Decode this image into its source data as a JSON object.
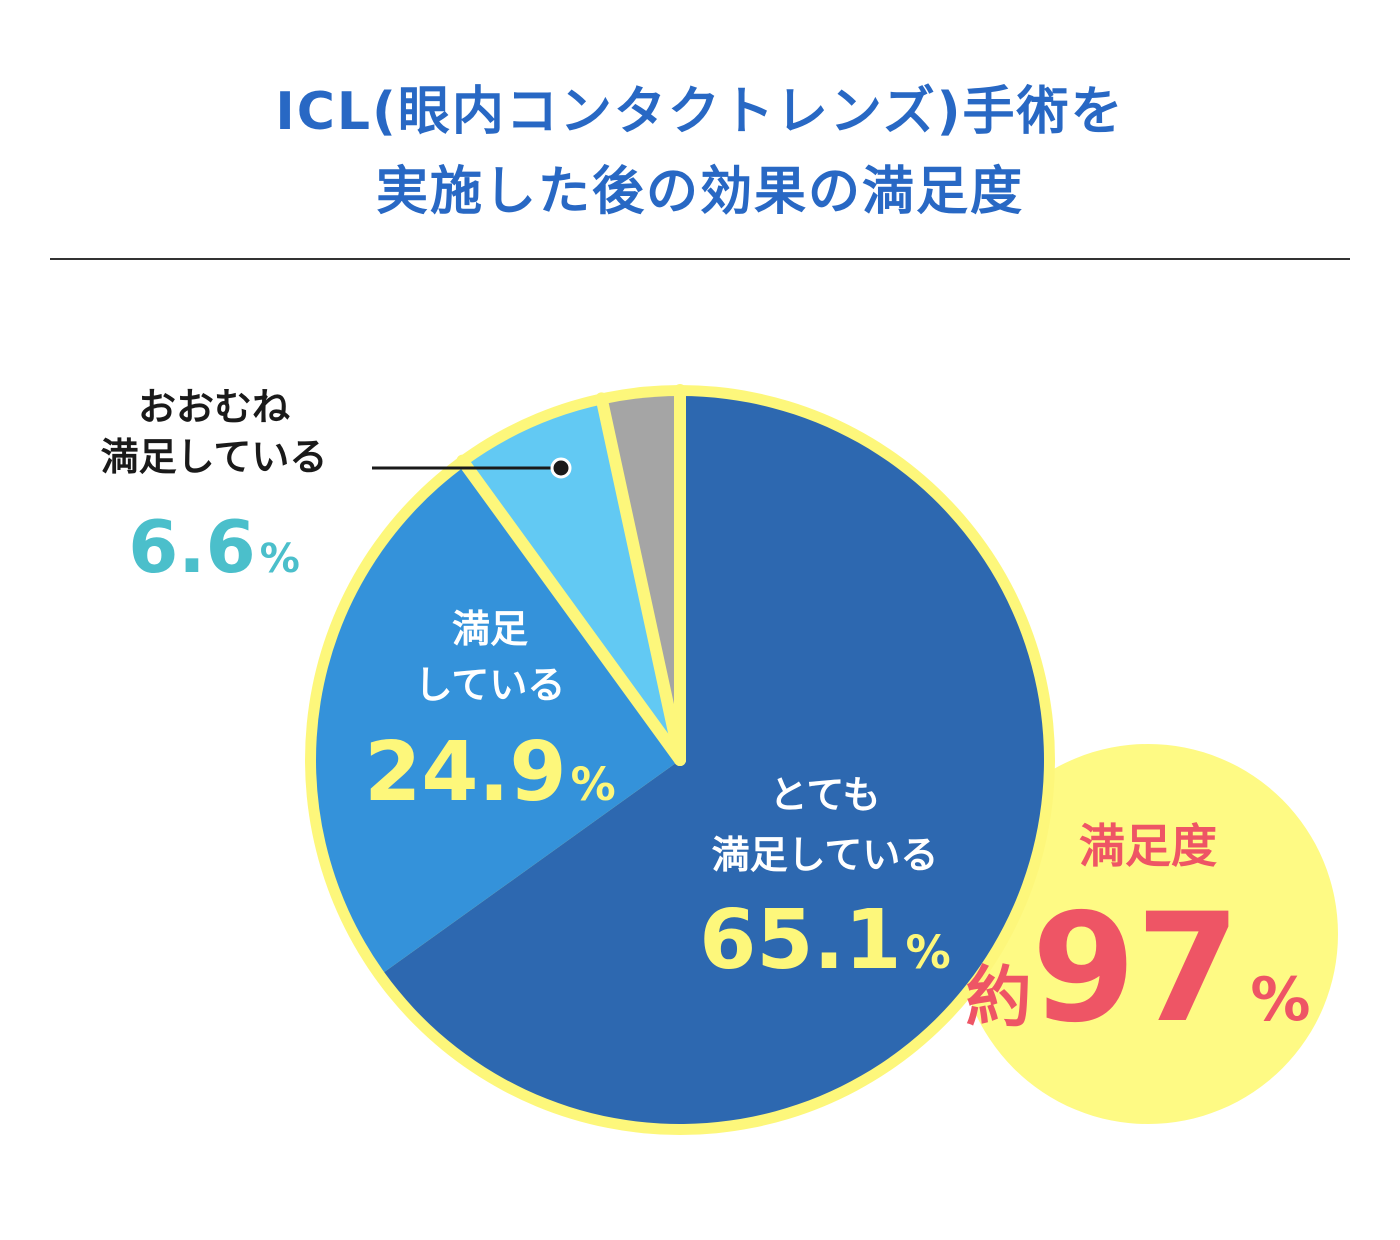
{
  "title": {
    "line1": "ICL(眼内コンタクトレンズ)手術を",
    "line2": "実施した後の効果の満足度"
  },
  "chart_data": {
    "type": "pie",
    "start_angle_deg": 0,
    "direction": "clockwise",
    "slices": [
      {
        "label_lines": [
          "とても",
          "満足している"
        ],
        "value": 65.1,
        "value_text": "65.1",
        "unit": "%",
        "color": "#2d68b0",
        "label_color": "#ffffff",
        "value_color": "#fdf77b"
      },
      {
        "label_lines": [
          "満足",
          "している"
        ],
        "value": 24.9,
        "value_text": "24.9",
        "unit": "%",
        "color": "#3492da",
        "label_color": "#ffffff",
        "value_color": "#fdf77b"
      },
      {
        "label_lines": [
          "おおむね",
          "満足している"
        ],
        "value": 6.6,
        "value_text": "6.6",
        "unit": "%",
        "color": "#62c9f3",
        "label_color": "#1a1a1a",
        "value_color": "#4bbfcb",
        "external_label": true
      },
      {
        "label_lines": [],
        "value": 3.4,
        "value_text": "",
        "unit": "",
        "color": "#a5a5a5"
      }
    ],
    "border_color": "#fdf77b",
    "legend": "none"
  },
  "badge": {
    "label": "満足度",
    "prefix": "約",
    "value": "97",
    "unit": "%",
    "color": "#ee5565",
    "fill": "#fefa84"
  }
}
